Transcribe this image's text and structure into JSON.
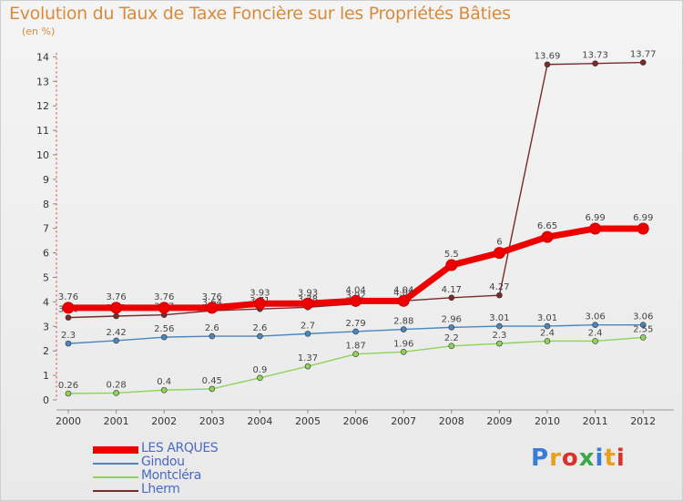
{
  "title": "Evolution du Taux de Taxe Foncière sur les Propriétés Bâties",
  "subtitle": "(en %)",
  "logo": {
    "text": "Proxiti",
    "colors": [
      "#3a7bd5",
      "#e8a020",
      "#d9322b",
      "#3aa84a",
      "#3a7bd5",
      "#e8a020",
      "#d9322b"
    ]
  },
  "chart_data": {
    "type": "line",
    "title": "Evolution du Taux de Taxe Foncière sur les Propriétés Bâties",
    "ylabel": "(en %)",
    "x": [
      2000,
      2001,
      2002,
      2003,
      2004,
      2005,
      2006,
      2007,
      2008,
      2009,
      2010,
      2011,
      2012
    ],
    "ylim": [
      0,
      14
    ],
    "yticks": [
      0,
      1,
      2,
      3,
      4,
      5,
      6,
      7,
      8,
      9,
      10,
      11,
      12,
      13,
      14
    ],
    "grid": false,
    "legend_position": "bottom-left",
    "series": [
      {
        "name": "LES ARQUES",
        "color": "#ee0000",
        "values": [
          3.76,
          3.76,
          3.76,
          3.76,
          3.93,
          3.93,
          4.04,
          4.04,
          5.5,
          6,
          6.65,
          6.99,
          6.99
        ],
        "labels": [
          "3.76",
          "3.76",
          "3.76",
          "3.76",
          "3.93",
          "3.93",
          "4.04",
          "4.04",
          "5.5",
          "6",
          "6.65",
          "6.99",
          "6.99"
        ]
      },
      {
        "name": "Gindou",
        "color": "#4a86c0",
        "values": [
          2.3,
          2.42,
          2.56,
          2.6,
          2.6,
          2.7,
          2.79,
          2.88,
          2.96,
          3.01,
          3.01,
          3.06,
          3.06
        ],
        "labels": [
          "2.3",
          "2.42",
          "2.56",
          "2.6",
          "2.6",
          "2.7",
          "2.79",
          "2.88",
          "2.96",
          "3.01",
          "3.01",
          "3.06",
          "3.06"
        ]
      },
      {
        "name": "Montcléra",
        "color": "#8fd35a",
        "values": [
          0.26,
          0.28,
          0.4,
          0.45,
          0.9,
          1.37,
          1.87,
          1.96,
          2.2,
          2.3,
          2.4,
          2.4,
          2.55
        ],
        "labels": [
          "0.26",
          "0.28",
          "0.4",
          "0.45",
          "0.9",
          "1.37",
          "1.87",
          "1.96",
          "2.2",
          "2.3",
          "2.4",
          "2.4",
          "2.55"
        ]
      },
      {
        "name": "Lherm",
        "color": "#7a2a2a",
        "values": [
          3.36,
          3.42,
          3.47,
          3.64,
          3.71,
          3.78,
          3.92,
          4.04,
          4.17,
          4.27,
          13.69,
          13.73,
          13.77
        ],
        "labels": [
          "3.36",
          "3.42",
          "3.47",
          "3.64",
          "3.71",
          "3.78",
          "3.92",
          "4.04",
          "4.17",
          "4.27",
          "13.69",
          "13.73",
          "13.77"
        ]
      }
    ]
  }
}
